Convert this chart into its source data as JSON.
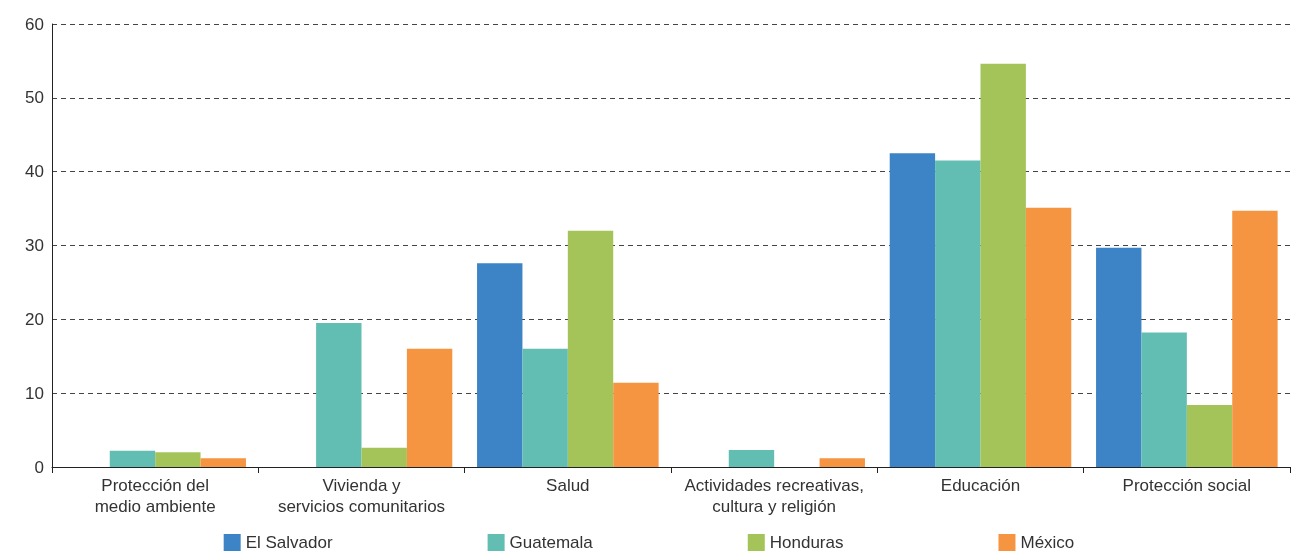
{
  "chart_data": {
    "type": "bar",
    "categories": [
      "Protección del\nmedio ambiente",
      "Vivienda y\nservicios comunitarios",
      "Salud",
      "Actividades recreativas,\ncultura y religión",
      "Educación",
      "Protección social"
    ],
    "series": [
      {
        "name": "El Salvador",
        "color": "#3d84c6",
        "values": [
          null,
          null,
          27.6,
          null,
          42.5,
          29.7
        ]
      },
      {
        "name": "Guatemala",
        "color": "#62bdb2",
        "values": [
          2.2,
          19.5,
          16.0,
          2.3,
          41.5,
          18.2
        ]
      },
      {
        "name": "Honduras",
        "color": "#a4c45a",
        "values": [
          2.0,
          2.6,
          32.0,
          null,
          54.6,
          8.4
        ]
      },
      {
        "name": "México",
        "color": "#f69541",
        "values": [
          1.2,
          16.0,
          11.4,
          1.2,
          35.1,
          34.7
        ]
      }
    ],
    "ylim": [
      0,
      60
    ],
    "yticks": [
      0,
      10,
      20,
      30,
      40,
      50,
      60
    ],
    "grid": "y",
    "legend": "bottom"
  }
}
